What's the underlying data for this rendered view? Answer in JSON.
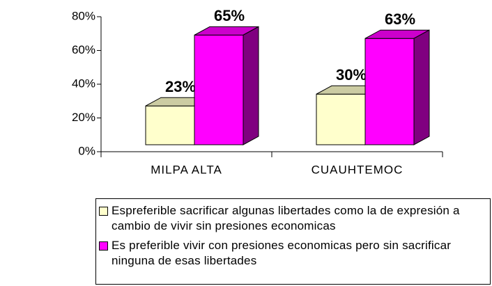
{
  "chart_data": {
    "type": "bar3d",
    "categories": [
      "MILPA ALTA",
      "CUAUHTEMOC"
    ],
    "series": [
      {
        "name": "Espreferible sacrificar algunas libertades como la de expresión a cambio de vivir sin presiones economicas",
        "color": "#ffffcc",
        "values": [
          23,
          30
        ],
        "value_labels": [
          "23%",
          "30%"
        ]
      },
      {
        "name": "Es preferible vivir con presiones economicas pero sin sacrificar ninguna de esas libertades",
        "color": "#ff00ff",
        "values": [
          65,
          63
        ],
        "value_labels": [
          "65%",
          "63%"
        ]
      }
    ],
    "ylim": [
      0,
      80
    ],
    "yticks": [
      {
        "value": 0,
        "label": "0%"
      },
      {
        "value": 20,
        "label": "20%"
      },
      {
        "value": 40,
        "label": "40%"
      },
      {
        "value": 60,
        "label": "60%"
      },
      {
        "value": 80,
        "label": "80%"
      }
    ],
    "legend": "bottom"
  }
}
